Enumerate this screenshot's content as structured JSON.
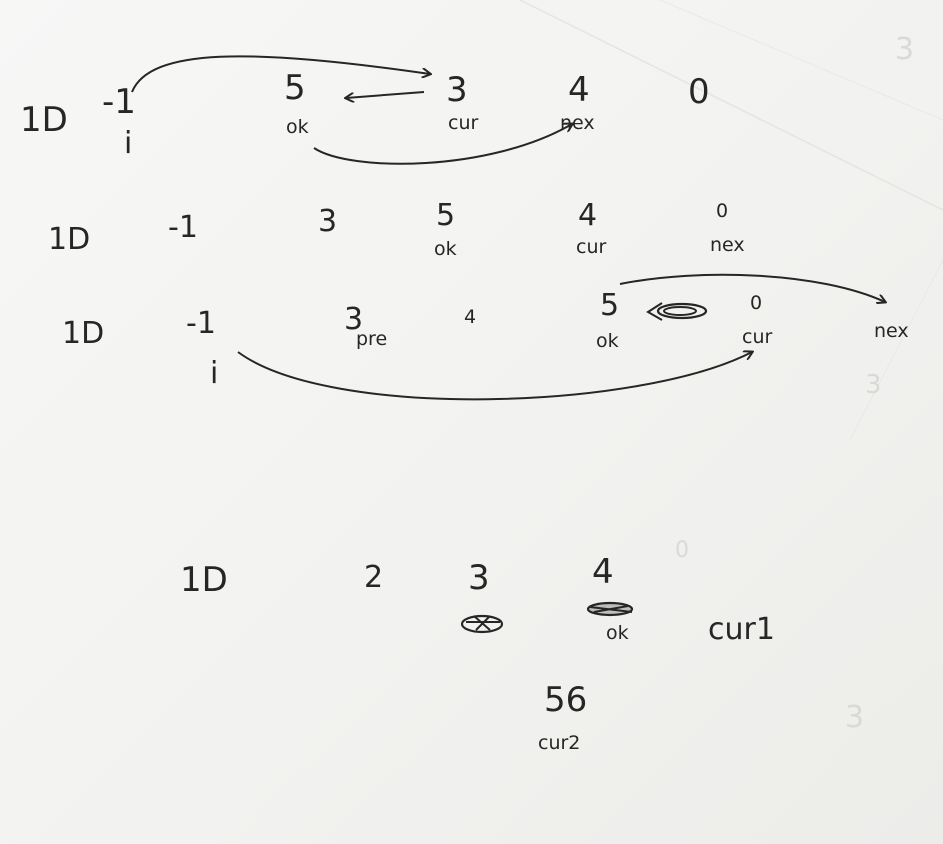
{
  "rows": [
    {
      "label": "1D",
      "values": [
        "-1",
        "5",
        "3",
        "4",
        "0"
      ],
      "pointers": [
        "i",
        "ok",
        "cur",
        "nex"
      ]
    },
    {
      "label": "1D",
      "values": [
        "-1",
        "3",
        "5",
        "4",
        "0"
      ],
      "pointers": [
        "ok",
        "cur",
        "nex"
      ]
    },
    {
      "label": "1D",
      "values": [
        "-1",
        "3",
        "4",
        "5",
        "0"
      ],
      "pointers": [
        "i",
        "pre",
        "ok",
        "cur",
        "nex"
      ]
    },
    {
      "label": "1D",
      "values": [
        "2",
        "3",
        "4",
        "56"
      ],
      "pointers": [
        "ok",
        "cur1",
        "cur2"
      ]
    }
  ],
  "ink_color": "#262626"
}
